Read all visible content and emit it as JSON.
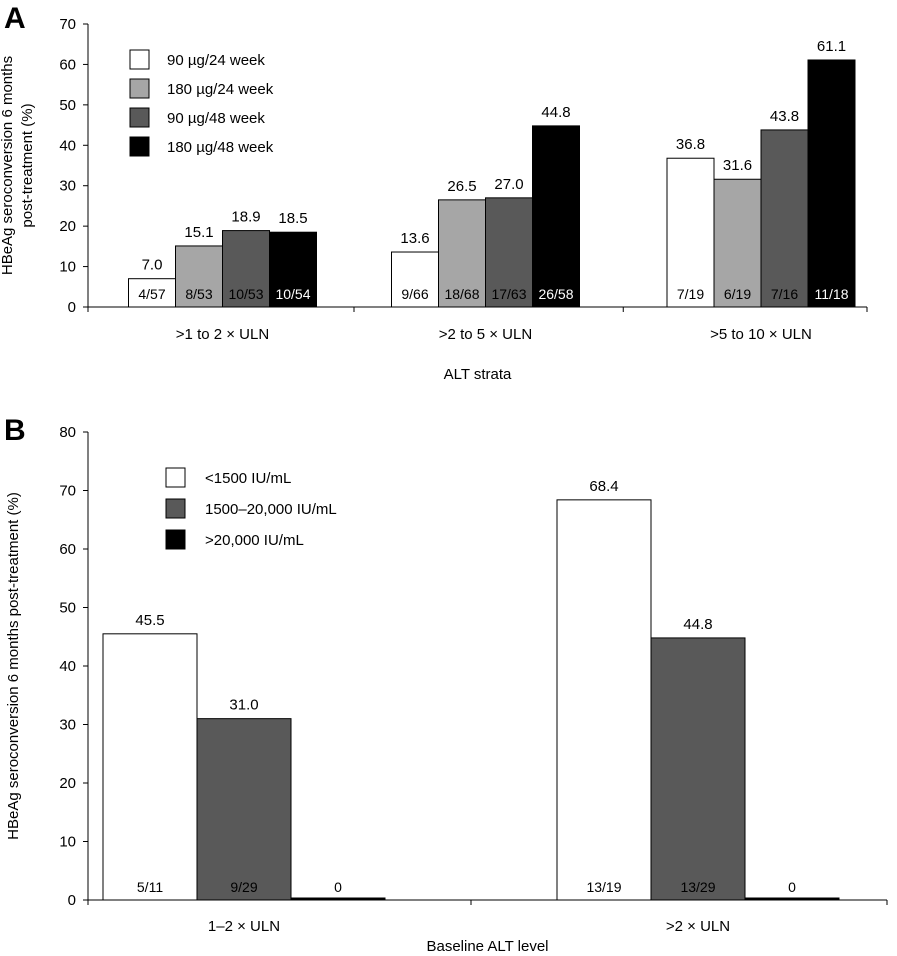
{
  "chart_data": [
    {
      "panel": "A",
      "type": "bar",
      "xlabel": "ALT strata",
      "ylabel": [
        "HBeAg seroconversion 6 months",
        "post-treatment (%)"
      ],
      "ylim": [
        0,
        70
      ],
      "yticks": [
        0,
        10,
        20,
        30,
        40,
        50,
        60,
        70
      ],
      "categories": [
        ">1 to 2 × ULN",
        ">2 to 5 × ULN",
        ">5 to 10 × ULN"
      ],
      "legend_placement": "top-left",
      "series": [
        {
          "name": "90 µg/24 week",
          "color": "#ffffff",
          "text_color": "#000000",
          "values": [
            7.0,
            13.6,
            36.8
          ],
          "labels": [
            "7.0",
            "13.6",
            "36.8"
          ],
          "counts": [
            "4/57",
            "9/66",
            "7/19"
          ]
        },
        {
          "name": "180 µg/24 week",
          "color": "#a6a6a6",
          "text_color": "#000000",
          "values": [
            15.1,
            26.5,
            31.6
          ],
          "labels": [
            "15.1",
            "26.5",
            "31.6"
          ],
          "counts": [
            "8/53",
            "18/68",
            "6/19"
          ]
        },
        {
          "name": "90 µg/48 week",
          "color": "#595959",
          "text_color": "#000000",
          "values": [
            18.9,
            27.0,
            43.8
          ],
          "labels": [
            "18.9",
            "27.0",
            "43.8"
          ],
          "counts": [
            "10/53",
            "17/63",
            "7/16"
          ]
        },
        {
          "name": "180 µg/48 week",
          "color": "#000000",
          "text_color": "#ffffff",
          "values": [
            18.5,
            44.8,
            61.1
          ],
          "labels": [
            "18.5",
            "44.8",
            "61.1"
          ],
          "counts": [
            "10/54",
            "26/58",
            "11/18"
          ]
        }
      ]
    },
    {
      "panel": "B",
      "type": "bar",
      "xlabel": "Baseline ALT level",
      "ylabel": [
        "HBeAg seroconversion 6 months post-treatment (%)"
      ],
      "ylim": [
        0,
        80
      ],
      "yticks": [
        0,
        10,
        20,
        30,
        40,
        50,
        60,
        70,
        80
      ],
      "categories": [
        "1–2 × ULN",
        ">2 × ULN"
      ],
      "legend_placement": "top-left",
      "series": [
        {
          "name": "<1500 IU/mL",
          "color": "#ffffff",
          "text_color": "#000000",
          "values": [
            45.5,
            68.4
          ],
          "labels": [
            "45.5",
            "68.4"
          ],
          "counts": [
            "5/11",
            "13/19"
          ]
        },
        {
          "name": "1500–20,000 IU/mL",
          "color": "#595959",
          "text_color": "#000000",
          "values": [
            31.0,
            44.8
          ],
          "labels": [
            "31.0",
            "44.8"
          ],
          "counts": [
            "9/29",
            "13/29"
          ]
        },
        {
          "name": ">20,000 IU/mL",
          "color": "#000000",
          "text_color": "#000000",
          "values": [
            0,
            0
          ],
          "labels": [
            "",
            ""
          ],
          "counts": [
            "0",
            "0"
          ]
        }
      ]
    }
  ]
}
